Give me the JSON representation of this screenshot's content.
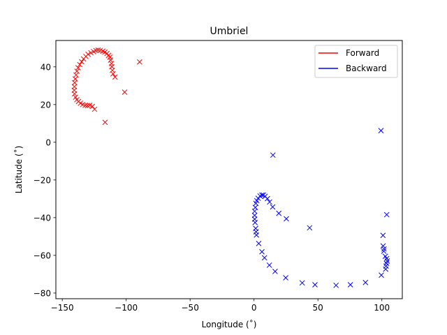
{
  "chart_data": {
    "type": "scatter",
    "title": "Umbriel",
    "xlabel": "Longitude (˚)",
    "ylabel": "Latitude (˚)",
    "xlim": [
      -155,
      116
    ],
    "ylim": [
      -83,
      54
    ],
    "xticks": [
      -150,
      -100,
      -50,
      0,
      50,
      100
    ],
    "yticks": [
      -80,
      -60,
      -40,
      -20,
      0,
      20,
      40
    ],
    "xtick_labels": [
      "−150",
      "−100",
      "−50",
      "0",
      "50",
      "100"
    ],
    "ytick_labels": [
      "−80",
      "−60",
      "−40",
      "−20",
      "0",
      "20",
      "40"
    ],
    "grid": false,
    "legend_position": "upper right",
    "marker": "x",
    "series": [
      {
        "name": "Forward",
        "color": "#ff0000",
        "points": [
          [
            -89.5,
            42.6
          ],
          [
            -101.2,
            26.6
          ],
          [
            -116.5,
            10.6
          ],
          [
            -108.7,
            34.6
          ],
          [
            -110.3,
            36.3
          ],
          [
            -110.8,
            38.2
          ],
          [
            -111.2,
            40.1
          ],
          [
            -111.5,
            41.8
          ],
          [
            -112.2,
            43.6
          ],
          [
            -112.7,
            45.1
          ],
          [
            -113.8,
            46.1
          ],
          [
            -115.0,
            47.1
          ],
          [
            -116.7,
            47.8
          ],
          [
            -118.3,
            48.3
          ],
          [
            -120.3,
            48.7
          ],
          [
            -122.0,
            48.9
          ],
          [
            -123.7,
            48.7
          ],
          [
            -125.5,
            48.1
          ],
          [
            -127.6,
            47.5
          ],
          [
            -129.8,
            46.7
          ],
          [
            -131.5,
            45.5
          ],
          [
            -133.3,
            44.2
          ],
          [
            -134.8,
            42.7
          ],
          [
            -136.3,
            41.2
          ],
          [
            -137.6,
            39.5
          ],
          [
            -138.5,
            37.7
          ],
          [
            -139.2,
            35.7
          ],
          [
            -139.8,
            33.6
          ],
          [
            -140.3,
            31.6
          ],
          [
            -140.5,
            29.5
          ],
          [
            -140.6,
            27.6
          ],
          [
            -140.4,
            25.7
          ],
          [
            -139.6,
            23.9
          ],
          [
            -138.6,
            22.6
          ],
          [
            -137.3,
            21.6
          ],
          [
            -135.8,
            20.7
          ],
          [
            -134.0,
            20.0
          ],
          [
            -132.0,
            19.6
          ],
          [
            -130.2,
            19.5
          ],
          [
            -128.5,
            19.6
          ],
          [
            -126.5,
            19.0
          ],
          [
            -124.7,
            17.5
          ]
        ]
      },
      {
        "name": "Backward",
        "color": "#0000ff",
        "points": [
          [
            99.3,
            6.2
          ],
          [
            14.8,
            -6.8
          ],
          [
            103.8,
            -38.4
          ],
          [
            43.5,
            -45.4
          ],
          [
            100.9,
            -49.4
          ],
          [
            101.0,
            -55.0
          ],
          [
            101.7,
            -56.6
          ],
          [
            101.5,
            -57.8
          ],
          [
            102.7,
            -60.5
          ],
          [
            103.8,
            -61.7
          ],
          [
            104.2,
            -63.0
          ],
          [
            103.6,
            -64.2
          ],
          [
            103.3,
            -65.7
          ],
          [
            103.0,
            -67.3
          ],
          [
            99.6,
            -70.5
          ],
          [
            87.2,
            -74.4
          ],
          [
            75.4,
            -75.6
          ],
          [
            64.2,
            -75.9
          ],
          [
            47.7,
            -75.6
          ],
          [
            37.7,
            -74.6
          ],
          [
            24.8,
            -71.9
          ],
          [
            16.5,
            -68.5
          ],
          [
            12.0,
            -65.2
          ],
          [
            8.2,
            -61.3
          ],
          [
            6.2,
            -58.1
          ],
          [
            3.7,
            -53.7
          ],
          [
            1.9,
            -49.2
          ],
          [
            1.6,
            -47.5
          ],
          [
            1.3,
            -45.7
          ],
          [
            0.8,
            -42.6
          ],
          [
            0.5,
            -40.8
          ],
          [
            0.5,
            -38.8
          ],
          [
            0.5,
            -36.6
          ],
          [
            1.0,
            -34.6
          ],
          [
            1.5,
            -32.4
          ],
          [
            2.2,
            -31.0
          ],
          [
            3.2,
            -29.7
          ],
          [
            4.7,
            -28.5
          ],
          [
            6.2,
            -28.0
          ],
          [
            7.3,
            -28.0
          ],
          [
            8.6,
            -28.7
          ],
          [
            10.5,
            -29.9
          ],
          [
            12.2,
            -31.7
          ],
          [
            14.6,
            -34.3
          ],
          [
            19.4,
            -37.7
          ],
          [
            25.3,
            -40.6
          ]
        ]
      }
    ]
  }
}
